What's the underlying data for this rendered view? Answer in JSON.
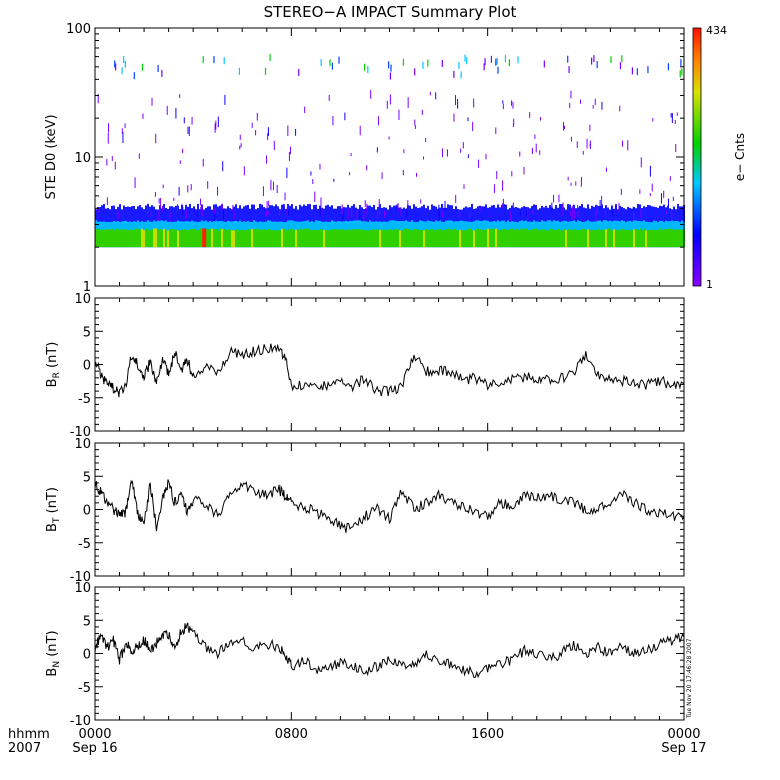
{
  "chart_data": [
    {
      "type": "heatmap",
      "title": "STEREO−A IMPACT Summary Plot",
      "ylabel": "STE D0 (keV)",
      "yscale": "log",
      "ylim": [
        1,
        100
      ],
      "ytick_labels": [
        "1",
        "10",
        "100"
      ],
      "colorbar": {
        "label": "e− Cnts",
        "min_label": "1",
        "max_label": "434",
        "min": 1,
        "max": 434
      },
      "band_description": "dense counts concentrated between ~2 and ~4 keV",
      "band_keV": [
        2.0,
        4.2
      ],
      "hot_spot": {
        "time_hours": 4.45,
        "energy_keV": 2.1,
        "counts": 434
      }
    },
    {
      "type": "line",
      "ylabel": "B",
      "ylabel_sub": "R",
      "ylabel_unit": "(nT)",
      "ylim": [
        -10,
        10
      ],
      "ytick_labels": [
        "-10",
        "-5",
        "0",
        "5",
        "10"
      ],
      "x_hours": [
        0,
        0.25,
        0.5,
        0.75,
        1,
        1.25,
        1.5,
        1.75,
        2,
        2.25,
        2.5,
        2.75,
        3,
        3.25,
        3.5,
        3.75,
        4,
        4.5,
        5,
        5.5,
        6,
        6.5,
        7,
        7.5,
        7.75,
        8,
        8.5,
        9,
        9.5,
        10,
        10.5,
        11,
        11.5,
        12,
        12.5,
        13,
        13.5,
        14,
        14.5,
        15,
        15.5,
        16,
        16.5,
        17,
        17.5,
        18,
        18.5,
        19,
        19.5,
        20,
        20.5,
        21,
        21.5,
        22,
        22.5,
        23,
        23.5,
        24
      ],
      "y": [
        0.5,
        -1.5,
        -3,
        -3.5,
        -4.5,
        -3,
        1.5,
        0,
        -2,
        0.5,
        -3,
        1,
        -1.5,
        2,
        -1,
        1,
        -2,
        0,
        -1.5,
        2,
        1.5,
        2,
        2.5,
        2,
        1,
        -3.5,
        -3,
        -3.5,
        -3,
        -2.5,
        -3.5,
        -2,
        -4,
        -4,
        -3.5,
        1.5,
        -1,
        -1,
        -1,
        -2.5,
        -2,
        -3,
        -2.5,
        -2,
        -2,
        -2,
        -2.5,
        -2,
        -1.5,
        1.5,
        -1.5,
        -2.5,
        -2.5,
        -3,
        -3,
        -2.5,
        -3,
        -3
      ]
    },
    {
      "type": "line",
      "ylabel": "B",
      "ylabel_sub": "T",
      "ylabel_unit": "(nT)",
      "ylim": [
        -10,
        10
      ],
      "ytick_labels": [
        "-10",
        "-5",
        "0",
        "5",
        "10"
      ],
      "x_hours": [
        0,
        0.25,
        0.5,
        0.75,
        1,
        1.25,
        1.5,
        1.75,
        2,
        2.25,
        2.5,
        2.75,
        3,
        3.25,
        3.5,
        3.75,
        4,
        4.5,
        5,
        5.5,
        6,
        6.5,
        7,
        7.5,
        7.75,
        8,
        8.5,
        9,
        9.5,
        10,
        10.5,
        11,
        11.5,
        12,
        12.5,
        13,
        13.5,
        14,
        14.5,
        15,
        15.5,
        16,
        16.5,
        17,
        17.5,
        18,
        18.5,
        19,
        19.5,
        20,
        20.5,
        21,
        21.5,
        22,
        22.5,
        23,
        23.5,
        24
      ],
      "y": [
        4,
        2.5,
        1,
        0,
        -1,
        -0.5,
        4.5,
        -0.5,
        -2.5,
        4,
        -3,
        2,
        4,
        1,
        2,
        0,
        1.5,
        1,
        -1,
        2.5,
        3.5,
        3,
        2,
        3,
        2,
        1,
        0.5,
        -0.5,
        -1,
        -2.5,
        -3,
        -1,
        0,
        -1.5,
        3,
        0,
        1,
        2.5,
        1,
        0.5,
        -0.5,
        -1,
        1,
        0.5,
        2,
        2,
        2,
        1.5,
        1,
        0,
        0,
        1,
        2.5,
        1,
        0,
        -0.5,
        -1,
        -1
      ]
    },
    {
      "type": "line",
      "ylabel": "B",
      "ylabel_sub": "N",
      "ylabel_unit": "(nT)",
      "ylim": [
        -10,
        10
      ],
      "ytick_labels": [
        "-10",
        "-5",
        "0",
        "5",
        "10"
      ],
      "x_hours": [
        0,
        0.25,
        0.5,
        0.75,
        1,
        1.25,
        1.5,
        1.75,
        2,
        2.25,
        2.5,
        2.75,
        3,
        3.25,
        3.5,
        3.75,
        4,
        4.5,
        5,
        5.5,
        6,
        6.5,
        7,
        7.5,
        7.75,
        8,
        8.5,
        9,
        9.5,
        10,
        10.5,
        11,
        11.5,
        12,
        12.5,
        13,
        13.5,
        14,
        14.5,
        15,
        15.5,
        16,
        16.5,
        17,
        17.5,
        18,
        18.5,
        19,
        19.5,
        20,
        20.5,
        21,
        21.5,
        22,
        22.5,
        23,
        23.5,
        24
      ],
      "y": [
        1,
        2.5,
        1,
        2,
        -1,
        1.5,
        0.5,
        1,
        2,
        0.5,
        1.5,
        3,
        3,
        0.5,
        3.5,
        4,
        3,
        1,
        0,
        1.5,
        2.5,
        0.5,
        1.5,
        1,
        0,
        -2,
        -1,
        -2.5,
        -2,
        -1.5,
        -2,
        -2.5,
        -2,
        -1,
        -1.5,
        -1.5,
        0,
        -1,
        -1.5,
        -2.5,
        -3,
        -2.5,
        -1.5,
        -1,
        0.5,
        0,
        -1,
        0,
        1.5,
        0,
        1,
        0,
        1,
        0,
        0.5,
        1.5,
        2,
        2.5
      ]
    }
  ],
  "xaxis": {
    "ticks": [
      {
        "hour": 0,
        "line1": "0000",
        "line2": "Sep 16"
      },
      {
        "hour": 8,
        "line1": "0800",
        "line2": ""
      },
      {
        "hour": 16,
        "line1": "1600",
        "line2": ""
      },
      {
        "hour": 24,
        "line1": "0000",
        "line2": "Sep 17"
      }
    ],
    "label_line1": "hhmm",
    "label_line2": "2007"
  },
  "timestamp": "Tue Nov 20 17:46:28 2007",
  "colors": {
    "axis": "#000000",
    "line": "#000000",
    "background": "#ffffff"
  }
}
